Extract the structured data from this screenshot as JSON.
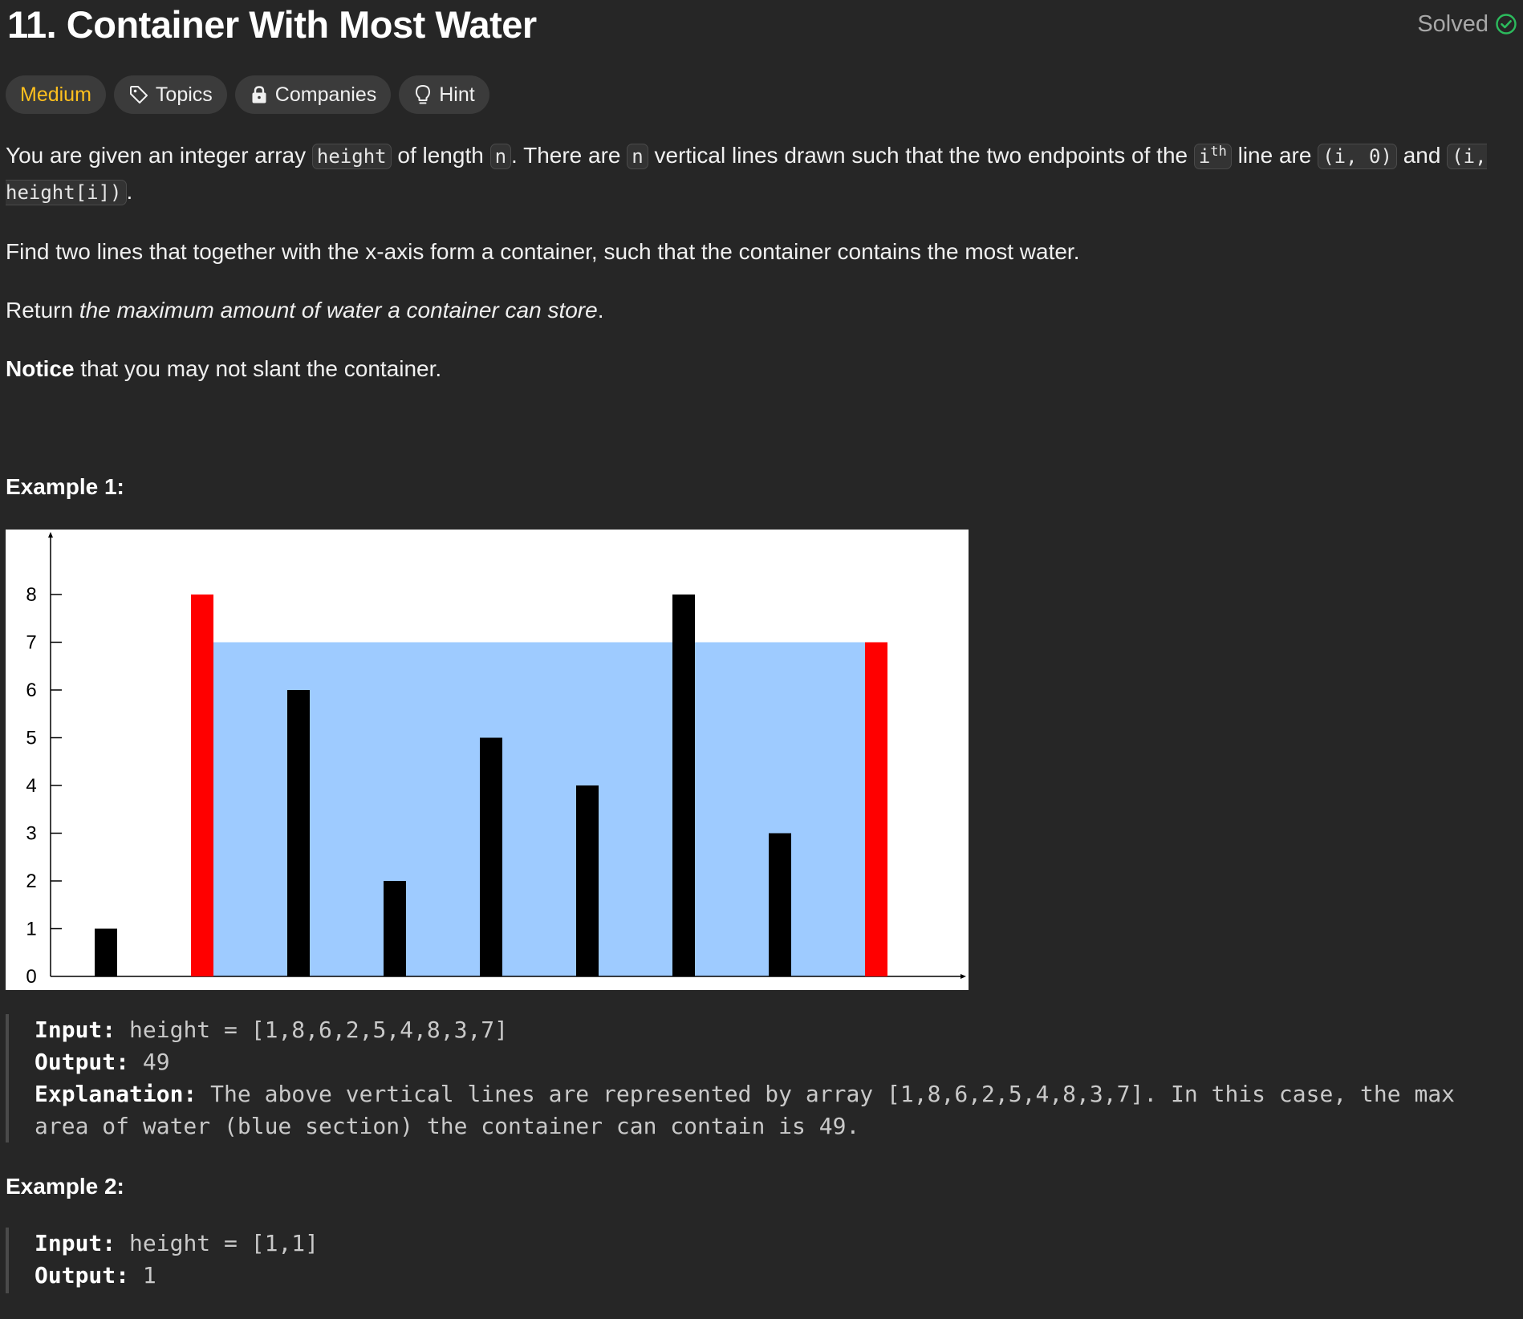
{
  "header": {
    "title": "11. Container With Most Water",
    "status": "Solved",
    "status_icon": "check-circle-icon",
    "status_color": "#2cbb5d"
  },
  "tags": [
    {
      "label": "Medium",
      "icon": "",
      "color": "#ffc01e"
    },
    {
      "label": "Topics",
      "icon": "tag-icon"
    },
    {
      "label": "Companies",
      "icon": "lock-icon"
    },
    {
      "label": "Hint",
      "icon": "lightbulb-icon"
    }
  ],
  "description": {
    "p1": {
      "t1": "You are given an integer array ",
      "c1": "height",
      "t2": " of length ",
      "c2": "n",
      "t3": ". There are ",
      "c3": "n",
      "t4": " vertical lines drawn such that the two endpoints of the ",
      "c4": "i",
      "c4_sup": "th",
      "t5": " line are ",
      "c5": "(i, 0)",
      "t6": " and ",
      "c6": "(i, height[i])",
      "t7": "."
    },
    "p2": "Find two lines that together with the x-axis form a container, such that the container contains the most water.",
    "p3": {
      "t1": "Return ",
      "em": "the maximum amount of water a container can store",
      "t2": "."
    },
    "p4": {
      "strong": "Notice",
      "t1": " that you may not slant the container."
    }
  },
  "example1": {
    "heading": "Example 1:",
    "input_label": "Input:",
    "input_value": " height = [1,8,6,2,5,4,8,3,7]",
    "output_label": "Output:",
    "output_value": " 49",
    "explanation_label": "Explanation:",
    "explanation_value": " The above vertical lines are represented by array [1,8,6,2,5,4,8,3,7]. In this case, the max area of water (blue section) the container can contain is 49."
  },
  "example2": {
    "heading": "Example 2:",
    "input_label": "Input:",
    "input_value": " height = [1,1]",
    "output_label": "Output:",
    "output_value": " 1"
  },
  "chart_data": {
    "type": "bar",
    "x": [
      0,
      1,
      2,
      3,
      4,
      5,
      6,
      7,
      8
    ],
    "values": [
      1,
      8,
      6,
      2,
      5,
      4,
      8,
      3,
      7
    ],
    "highlight_indices": [
      1,
      8
    ],
    "water_level": 7,
    "water_range": [
      1,
      8
    ],
    "ylim": [
      0,
      8
    ],
    "yticks": [
      "0",
      "1",
      "2",
      "3",
      "4",
      "5",
      "6",
      "7",
      "8"
    ],
    "colors": {
      "bar": "#000000",
      "highlight": "#ff0000",
      "water": "#9ecbff",
      "background": "#ffffff"
    },
    "grid": false
  }
}
